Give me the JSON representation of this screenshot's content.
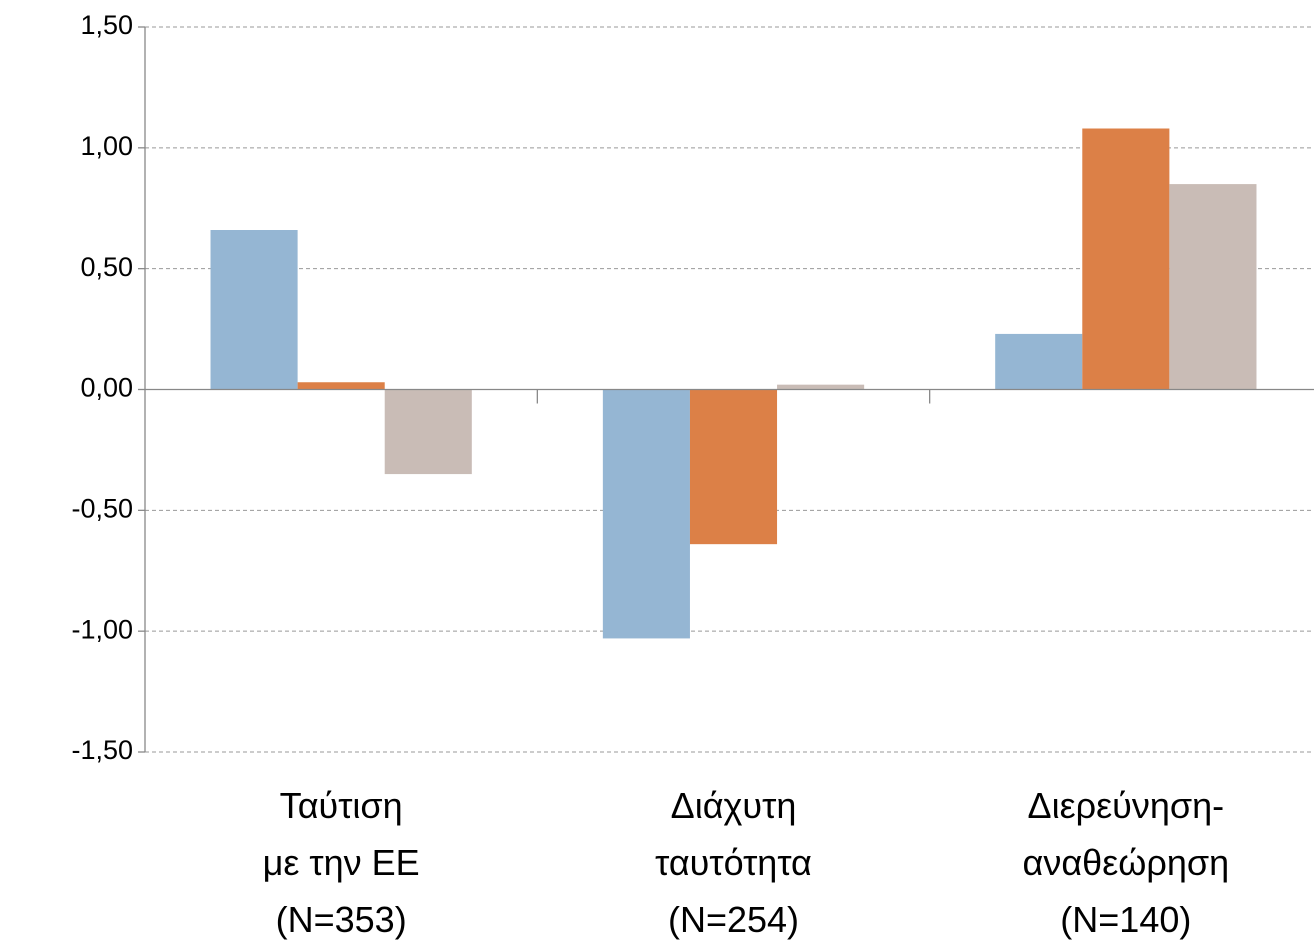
{
  "chart_data": {
    "type": "bar",
    "categories": [
      "Ταύτιση\nμε την ΕΕ\n(N=353)",
      "Διάχυτη\nταυτότητα\n(N=254)",
      "Διερεύνηση-\nαναθεώρηση\n(N=140)"
    ],
    "series": [
      {
        "color": "#95b6d3",
        "values": [
          0.66,
          -1.03,
          0.23
        ]
      },
      {
        "color": "#dc8047",
        "values": [
          0.03,
          -0.64,
          1.08
        ]
      },
      {
        "color": "#c9bcb6",
        "values": [
          -0.35,
          0.02,
          0.85
        ]
      }
    ],
    "ylim": [
      -1.5,
      1.5
    ],
    "yticks": [
      {
        "value": -1.5,
        "label": "-1,50"
      },
      {
        "value": -1,
        "label": "-1,00"
      },
      {
        "value": -0.5,
        "label": "-0,50"
      },
      {
        "value": 0,
        "label": "0,00"
      },
      {
        "value": 0.5,
        "label": "0,50"
      },
      {
        "value": 1,
        "label": "1,00"
      },
      {
        "value": 1.5,
        "label": "1,50"
      }
    ],
    "grid": true
  }
}
